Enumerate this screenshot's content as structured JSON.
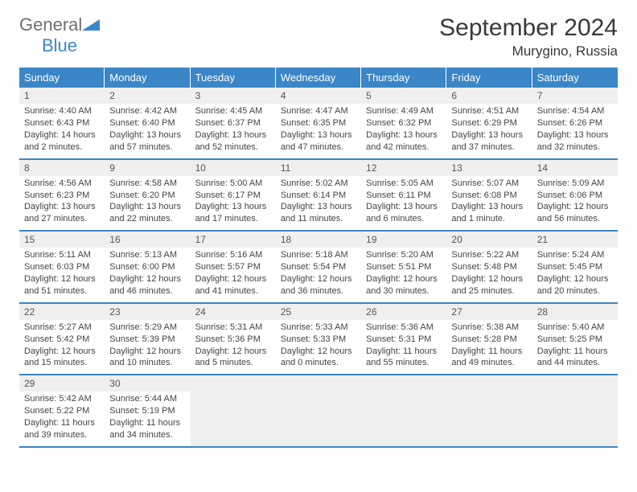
{
  "brand": {
    "word1": "General",
    "word2": "Blue"
  },
  "title": "September 2024",
  "location": "Murygino, Russia",
  "colors": {
    "header_bg": "#3b86c6",
    "header_text": "#ffffff",
    "daynum_bg": "#efefef",
    "border": "#3b86c6",
    "logo_gray": "#6f6f6f",
    "logo_blue": "#3b86c6",
    "body_text": "#444444"
  },
  "weekdays": [
    "Sunday",
    "Monday",
    "Tuesday",
    "Wednesday",
    "Thursday",
    "Friday",
    "Saturday"
  ],
  "weeks": [
    [
      {
        "n": 1,
        "sunrise": "4:40 AM",
        "sunset": "6:43 PM",
        "daylight": "14 hours and 2 minutes."
      },
      {
        "n": 2,
        "sunrise": "4:42 AM",
        "sunset": "6:40 PM",
        "daylight": "13 hours and 57 minutes."
      },
      {
        "n": 3,
        "sunrise": "4:45 AM",
        "sunset": "6:37 PM",
        "daylight": "13 hours and 52 minutes."
      },
      {
        "n": 4,
        "sunrise": "4:47 AM",
        "sunset": "6:35 PM",
        "daylight": "13 hours and 47 minutes."
      },
      {
        "n": 5,
        "sunrise": "4:49 AM",
        "sunset": "6:32 PM",
        "daylight": "13 hours and 42 minutes."
      },
      {
        "n": 6,
        "sunrise": "4:51 AM",
        "sunset": "6:29 PM",
        "daylight": "13 hours and 37 minutes."
      },
      {
        "n": 7,
        "sunrise": "4:54 AM",
        "sunset": "6:26 PM",
        "daylight": "13 hours and 32 minutes."
      }
    ],
    [
      {
        "n": 8,
        "sunrise": "4:56 AM",
        "sunset": "6:23 PM",
        "daylight": "13 hours and 27 minutes."
      },
      {
        "n": 9,
        "sunrise": "4:58 AM",
        "sunset": "6:20 PM",
        "daylight": "13 hours and 22 minutes."
      },
      {
        "n": 10,
        "sunrise": "5:00 AM",
        "sunset": "6:17 PM",
        "daylight": "13 hours and 17 minutes."
      },
      {
        "n": 11,
        "sunrise": "5:02 AM",
        "sunset": "6:14 PM",
        "daylight": "13 hours and 11 minutes."
      },
      {
        "n": 12,
        "sunrise": "5:05 AM",
        "sunset": "6:11 PM",
        "daylight": "13 hours and 6 minutes."
      },
      {
        "n": 13,
        "sunrise": "5:07 AM",
        "sunset": "6:08 PM",
        "daylight": "13 hours and 1 minute."
      },
      {
        "n": 14,
        "sunrise": "5:09 AM",
        "sunset": "6:06 PM",
        "daylight": "12 hours and 56 minutes."
      }
    ],
    [
      {
        "n": 15,
        "sunrise": "5:11 AM",
        "sunset": "6:03 PM",
        "daylight": "12 hours and 51 minutes."
      },
      {
        "n": 16,
        "sunrise": "5:13 AM",
        "sunset": "6:00 PM",
        "daylight": "12 hours and 46 minutes."
      },
      {
        "n": 17,
        "sunrise": "5:16 AM",
        "sunset": "5:57 PM",
        "daylight": "12 hours and 41 minutes."
      },
      {
        "n": 18,
        "sunrise": "5:18 AM",
        "sunset": "5:54 PM",
        "daylight": "12 hours and 36 minutes."
      },
      {
        "n": 19,
        "sunrise": "5:20 AM",
        "sunset": "5:51 PM",
        "daylight": "12 hours and 30 minutes."
      },
      {
        "n": 20,
        "sunrise": "5:22 AM",
        "sunset": "5:48 PM",
        "daylight": "12 hours and 25 minutes."
      },
      {
        "n": 21,
        "sunrise": "5:24 AM",
        "sunset": "5:45 PM",
        "daylight": "12 hours and 20 minutes."
      }
    ],
    [
      {
        "n": 22,
        "sunrise": "5:27 AM",
        "sunset": "5:42 PM",
        "daylight": "12 hours and 15 minutes."
      },
      {
        "n": 23,
        "sunrise": "5:29 AM",
        "sunset": "5:39 PM",
        "daylight": "12 hours and 10 minutes."
      },
      {
        "n": 24,
        "sunrise": "5:31 AM",
        "sunset": "5:36 PM",
        "daylight": "12 hours and 5 minutes."
      },
      {
        "n": 25,
        "sunrise": "5:33 AM",
        "sunset": "5:33 PM",
        "daylight": "12 hours and 0 minutes."
      },
      {
        "n": 26,
        "sunrise": "5:36 AM",
        "sunset": "5:31 PM",
        "daylight": "11 hours and 55 minutes."
      },
      {
        "n": 27,
        "sunrise": "5:38 AM",
        "sunset": "5:28 PM",
        "daylight": "11 hours and 49 minutes."
      },
      {
        "n": 28,
        "sunrise": "5:40 AM",
        "sunset": "5:25 PM",
        "daylight": "11 hours and 44 minutes."
      }
    ],
    [
      {
        "n": 29,
        "sunrise": "5:42 AM",
        "sunset": "5:22 PM",
        "daylight": "11 hours and 39 minutes."
      },
      {
        "n": 30,
        "sunrise": "5:44 AM",
        "sunset": "5:19 PM",
        "daylight": "11 hours and 34 minutes."
      },
      null,
      null,
      null,
      null,
      null
    ]
  ],
  "labels": {
    "sunrise": "Sunrise:",
    "sunset": "Sunset:",
    "daylight": "Daylight:"
  }
}
